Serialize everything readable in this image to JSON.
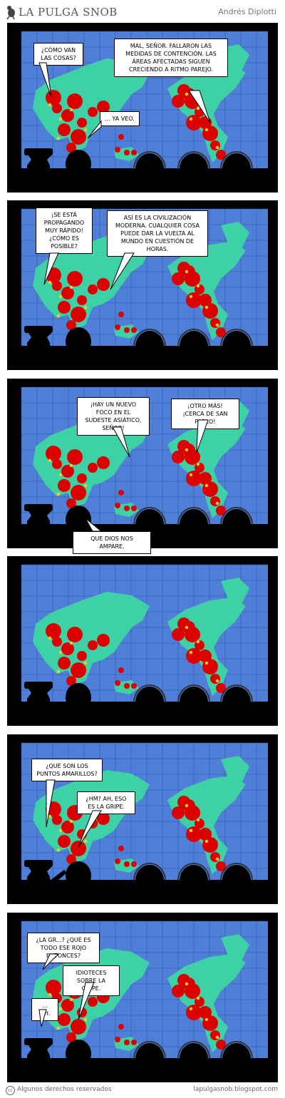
{
  "header": {
    "title": "LA PULGA SNOB",
    "author": "Andrés Diplotti"
  },
  "panels": [
    {
      "bubbles": [
        "¿CÓMO VAN LAS COSAS?",
        "MAL, SEÑOR. FALLARON LAS MEDIDAS DE CONTENCIÓN. LAS ÁREAS AFECTADAS SIGUEN CRECIENDO A RITMO PAREJO.",
        "... YA VEO."
      ]
    },
    {
      "bubbles": [
        "¡SE ESTÁ PROPAGANDO MUY RÁPIDO! ¿CÓMO ES POSIBLE?",
        "ASÍ ES LA CIVILIZACIÓN MODERNA. CUALQUIER COSA PUEDE DAR LA VUELTA AL MUNDO EN CUESTIÓN DE HORAS."
      ]
    },
    {
      "bubbles": [
        "¡HAY UN NUEVO FOCO EN EL SUDESTE ASIÁTICO, SEÑOR!",
        "¡OTRO MÁS! ¡CERCA DE SAN PABLO!",
        "QUE DIOS NOS AMPARE."
      ]
    },
    {
      "bubbles": []
    },
    {
      "bubbles": [
        "¿QUÉ SON LOS PUNTOS AMARILLOS?",
        "¿HM? AH, ESO ES LA GRIPE."
      ]
    },
    {
      "bubbles": [
        "¿LA GR...? ¿QUÉ ES TODO ESE ROJO ENTONCES?",
        "IDIOTECES SOBRE LA GRIPE.",
        "... OH."
      ]
    }
  ],
  "footer": {
    "license": "Algunos derechos reservados",
    "url": "lapulgasnob.blogspot.com"
  },
  "colors": {
    "map_blue": "#4f7fd6",
    "land": "#3fd1a6",
    "red": "#dd0000",
    "yellow": "#f2d020"
  }
}
